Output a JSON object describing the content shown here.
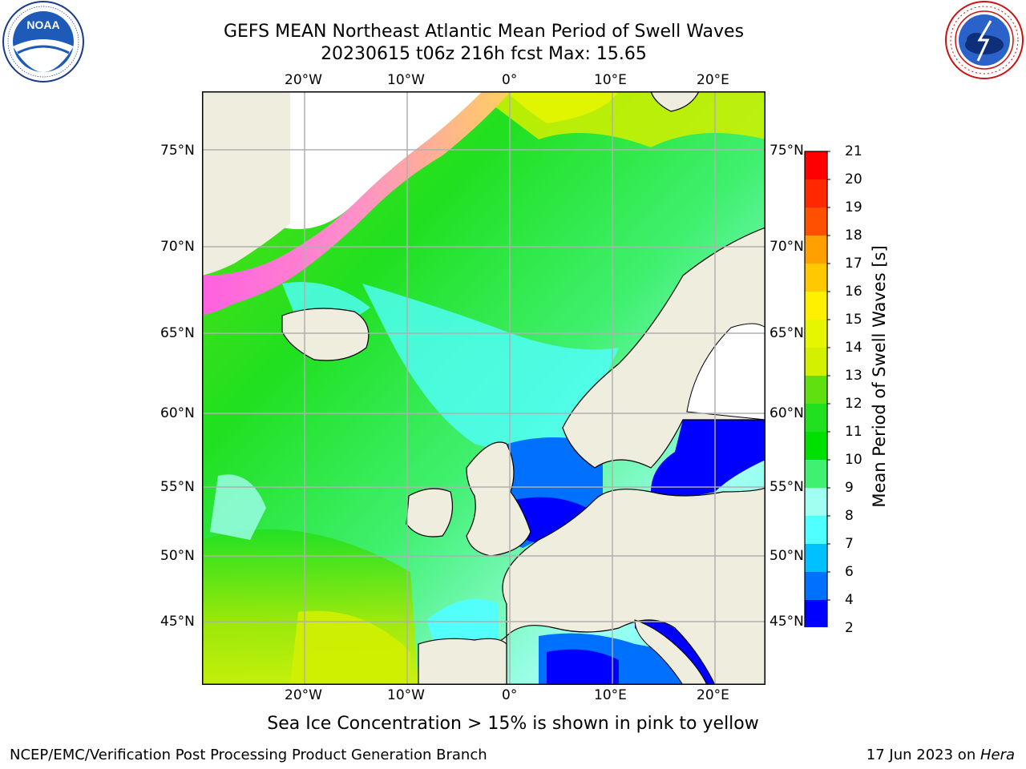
{
  "title": {
    "line1": "GEFS MEAN Northeast Atlantic Mean Period of Swell Waves",
    "line2": "20230615 t06z 216h fcst   Max: 15.65"
  },
  "logos": {
    "left": {
      "icon": "noaa-logo",
      "text": "NOAA",
      "ring_text": "NATIONAL OCEANIC AND ATMOSPHERIC ADMINISTRATION · U.S. DEPARTMENT OF COMMERCE"
    },
    "right": {
      "icon": "nws-logo",
      "ring_text": "NATIONAL WEATHER SERVICE"
    }
  },
  "map": {
    "projection": "lat-lon",
    "lon_ticks": [
      "20°W",
      "10°W",
      "0°",
      "10°E",
      "20°E"
    ],
    "lat_ticks_left": [
      "75°N",
      "70°N",
      "65°N",
      "60°N",
      "55°N",
      "50°N",
      "45°N"
    ],
    "lat_ticks_right": [
      "75°N",
      "70°N",
      "65°N",
      "60°N",
      "55°N",
      "50°N",
      "45°N"
    ],
    "grid": true,
    "land_color": "#efedde",
    "ice_note": "Sea Ice Concentration > 15% is shown in pink to yellow"
  },
  "colorbar": {
    "label": "Mean Period of Swell Waves [s]",
    "ticks": [
      "21",
      "20",
      "19",
      "18",
      "17",
      "16",
      "15",
      "14",
      "13",
      "12",
      "11",
      "10",
      "9",
      "8",
      "7",
      "6",
      "4",
      "2"
    ],
    "colors": [
      "#ff0000",
      "#ff2800",
      "#ff5000",
      "#ff7800",
      "#ffa000",
      "#ffc800",
      "#fff000",
      "#e6f500",
      "#d2f000",
      "#a6e800",
      "#60e010",
      "#20e020",
      "#00e000",
      "#40f070",
      "#a0fff0",
      "#50ffff",
      "#00f8ff",
      "#00c0ff",
      "#0070ff",
      "#0000ff"
    ],
    "extend": "min"
  },
  "footer": {
    "left": "NCEP/EMC/Verification Post Processing Product Generation Branch",
    "right_date": "17 Jun 2023 on ",
    "right_host": "Hera"
  }
}
